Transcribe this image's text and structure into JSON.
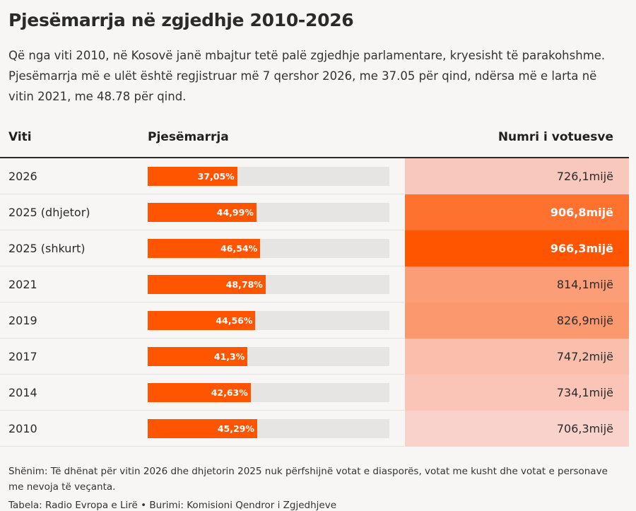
{
  "title": "Pjesëmarrja në zgjedhje 2010-2026",
  "description": "Që nga viti 2010, në Kosovë janë mbajtur tetë palë zgjedhje parlamentare, kryesisht të parakohshme. Pjesëmarrja më e ulët është regjistruar më 7 qershor 2026, me 37.05 për qind, ndërsa më e larta në vitin 2021, me 48.78 për qind.",
  "columns": {
    "year": "Viti",
    "participation": "Pjesëmarrja",
    "voters": "Numri i votuesve"
  },
  "colors": {
    "bar": "#ff5400",
    "track": "#e6e5e3",
    "heat_low": "#f9d2cc",
    "heat_high": "#ff5400"
  },
  "chart_data": {
    "type": "table",
    "xlim": [
      0,
      100
    ],
    "rows": [
      {
        "year": "2026",
        "participation": 37.05,
        "participation_label": "37,05%",
        "voters": 726.1,
        "voters_label": "726,1mijë"
      },
      {
        "year": "2025 (dhjetor)",
        "participation": 44.99,
        "participation_label": "44,99%",
        "voters": 906.8,
        "voters_label": "906,8mijë"
      },
      {
        "year": "2025 (shkurt)",
        "participation": 46.54,
        "participation_label": "46,54%",
        "voters": 966.3,
        "voters_label": "966,3mijë"
      },
      {
        "year": "2021",
        "participation": 48.78,
        "participation_label": "48,78%",
        "voters": 814.1,
        "voters_label": "814,1mijë"
      },
      {
        "year": "2019",
        "participation": 44.56,
        "participation_label": "44,56%",
        "voters": 826.9,
        "voters_label": "826,9mijë"
      },
      {
        "year": "2017",
        "participation": 41.3,
        "participation_label": "41,3%",
        "voters": 747.2,
        "voters_label": "747,2mijë"
      },
      {
        "year": "2014",
        "participation": 42.63,
        "participation_label": "42,63%",
        "voters": 734.1,
        "voters_label": "734,1mijë"
      },
      {
        "year": "2010",
        "participation": 45.29,
        "participation_label": "45,29%",
        "voters": 706.3,
        "voters_label": "706,3mijë"
      }
    ]
  },
  "note": "Shënim: Të dhënat për vitin 2026 dhe dhjetorin 2025 nuk përfshijnë votat e diasporës, votat me kusht dhe votat e personave me nevoja të veçanta.",
  "source": "Tabela: Radio Evropa e Lirë • Burimi: Komisioni Qendror i Zgjedhjeve"
}
